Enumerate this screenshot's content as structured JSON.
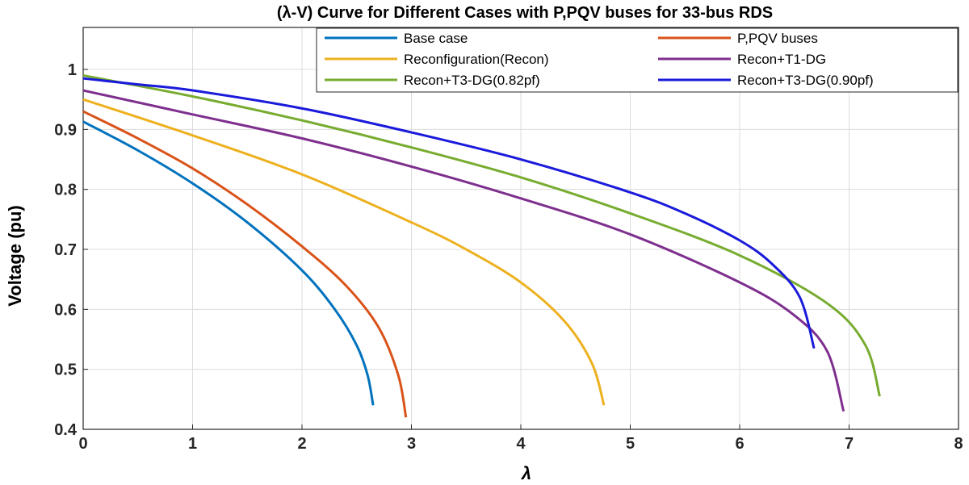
{
  "chart_data": {
    "type": "line",
    "title": "(λ-V) Curve for Different Cases with P,PQV buses for 33-bus RDS",
    "xlabel": "λ",
    "ylabel": "Voltage (pu)",
    "xlim": [
      0,
      8
    ],
    "ylim": [
      0.4,
      1.07
    ],
    "xticks": [
      "0",
      "1",
      "2",
      "3",
      "4",
      "5",
      "6",
      "7",
      "8"
    ],
    "yticks": [
      "0.4",
      "0.5",
      "0.6",
      "0.7",
      "0.8",
      "0.9",
      "1"
    ],
    "grid": true,
    "legend_position": "top-right",
    "series": [
      {
        "name": "Base case",
        "color": "#0072BD",
        "x": [
          0,
          0.5,
          1.0,
          1.5,
          2.0,
          2.3,
          2.5,
          2.6,
          2.65
        ],
        "y": [
          0.913,
          0.865,
          0.81,
          0.745,
          0.665,
          0.6,
          0.54,
          0.49,
          0.44
        ]
      },
      {
        "name": "P,PQV buses",
        "color": "#D95319",
        "x": [
          0,
          0.5,
          1.0,
          1.5,
          2.0,
          2.4,
          2.7,
          2.88,
          2.95
        ],
        "y": [
          0.93,
          0.885,
          0.835,
          0.775,
          0.705,
          0.64,
          0.57,
          0.49,
          0.42
        ]
      },
      {
        "name": "Reconfiguration(Recon)",
        "color": "#EDB120",
        "x": [
          0,
          1.0,
          2.0,
          3.0,
          3.5,
          4.0,
          4.4,
          4.65,
          4.76
        ],
        "y": [
          0.95,
          0.89,
          0.825,
          0.745,
          0.7,
          0.645,
          0.58,
          0.51,
          0.44
        ]
      },
      {
        "name": "Recon+T1-DG",
        "color": "#7E2F8E",
        "x": [
          0,
          1.0,
          2.0,
          3.0,
          4.0,
          5.0,
          6.0,
          6.5,
          6.8,
          6.95
        ],
        "y": [
          0.965,
          0.925,
          0.885,
          0.838,
          0.785,
          0.725,
          0.645,
          0.59,
          0.53,
          0.43
        ]
      },
      {
        "name": "Recon+T3-DG(0.82pf)",
        "color": "#77AC30",
        "x": [
          0,
          1.0,
          2.0,
          3.0,
          4.0,
          5.0,
          6.0,
          6.8,
          7.15,
          7.28
        ],
        "y": [
          0.99,
          0.955,
          0.915,
          0.87,
          0.82,
          0.76,
          0.69,
          0.61,
          0.54,
          0.455
        ]
      },
      {
        "name": "Recon+T3-DG(0.90pf)",
        "color": "#1A1ADB",
        "x": [
          0,
          0.5,
          1.0,
          2.0,
          3.0,
          4.0,
          5.0,
          5.5,
          6.0,
          6.3,
          6.55,
          6.68
        ],
        "y": [
          0.985,
          0.975,
          0.965,
          0.935,
          0.895,
          0.85,
          0.795,
          0.76,
          0.715,
          0.675,
          0.62,
          0.535
        ]
      }
    ]
  }
}
